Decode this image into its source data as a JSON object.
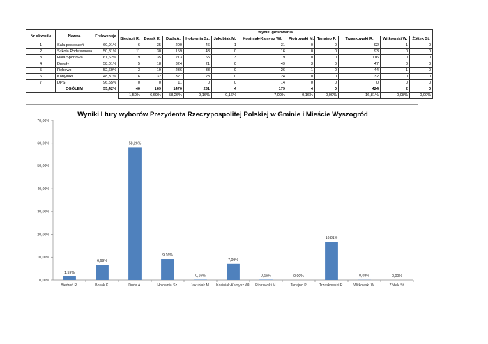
{
  "table": {
    "headers": {
      "district_no": "Nr obwodu",
      "name": "Nazwa",
      "turnout": "Frekwencja",
      "results_group": "Wyniki głosowania"
    },
    "candidates": [
      "Biedroń R.",
      "Bosak K.",
      "Duda A.",
      "Hołownia Sz.",
      "Jakubiak M.",
      "Kosiniak-Kamysz Wł.",
      "Piotrowski M.",
      "Tanajno P.",
      "Trzaskowski R.",
      "Witkowski W.",
      "Żółtek St."
    ],
    "rows": [
      {
        "no": "1",
        "name": "Sala posiedzeń",
        "turnout": "60,91%",
        "votes": [
          "6",
          "35",
          "200",
          "46",
          "1",
          "31",
          "0",
          "0",
          "92",
          "1",
          "0"
        ]
      },
      {
        "no": "2",
        "name": "Szkoła Podstawowa",
        "turnout": "50,81%",
        "votes": [
          "11",
          "30",
          "159",
          "43",
          "0",
          "16",
          "0",
          "0",
          "93",
          "0",
          "0"
        ]
      },
      {
        "no": "3",
        "name": "Hala Sportowa",
        "turnout": "61,62%",
        "votes": [
          "9",
          "35",
          "213",
          "65",
          "3",
          "19",
          "0",
          "0",
          "116",
          "0",
          "0"
        ]
      },
      {
        "no": "4",
        "name": "Drwały",
        "turnout": "58,01%",
        "votes": [
          "5",
          "18",
          "324",
          "21",
          "0",
          "49",
          "3",
          "0",
          "47",
          "0",
          "0"
        ]
      },
      {
        "no": "5",
        "name": "Rębowo",
        "turnout": "52,69%",
        "votes": [
          "3",
          "19",
          "236",
          "33",
          "0",
          "26",
          "1",
          "0",
          "44",
          "1",
          "0"
        ]
      },
      {
        "no": "6",
        "name": "Kobylniki",
        "turnout": "48,37%",
        "votes": [
          "6",
          "32",
          "327",
          "23",
          "0",
          "24",
          "0",
          "0",
          "32",
          "0",
          "0"
        ]
      },
      {
        "no": "7",
        "name": "DPS",
        "turnout": "96,55%",
        "votes": [
          "0",
          "0",
          "11",
          "0",
          "0",
          "14",
          "0",
          "0",
          "0",
          "0",
          "0"
        ]
      }
    ],
    "total": {
      "label": "OGÓŁEM",
      "turnout": "55,42%",
      "votes": [
        "40",
        "169",
        "1470",
        "231",
        "4",
        "179",
        "4",
        "0",
        "424",
        "2",
        "0"
      ]
    },
    "percents": [
      "1,59%",
      "6,69%",
      "58,26%",
      "9,16%",
      "0,16%",
      "7,09%",
      "0,16%",
      "0,00%",
      "16,81%",
      "0,08%",
      "0,00%"
    ]
  },
  "chart_data": {
    "type": "bar",
    "title": "Wyniki I tury wyborów Prezydenta Rzeczypospolitej Polskiej w Gminie i Mieście Wyszogród",
    "categories": [
      "Biedroń R.",
      "Bosak K.",
      "Duda A.",
      "Hołownia Sz.",
      "Jakubiak M.",
      "Kosiniak-Kamysz Wł.",
      "Piotrowski M.",
      "Tanajno P.",
      "Trzaskowski R.",
      "Witkowski W.",
      "Żółtek St."
    ],
    "values": [
      1.59,
      6.69,
      58.26,
      9.16,
      0.16,
      7.09,
      0.16,
      0.0,
      16.81,
      0.08,
      0.0
    ],
    "data_labels": [
      "1,59%",
      "6,69%",
      "58,26%",
      "9,16%",
      "0,16%",
      "7,09%",
      "0,16%",
      "0,00%",
      "16,81%",
      "0,08%",
      "0,00%"
    ],
    "yticks": [
      0,
      10,
      20,
      30,
      40,
      50,
      60,
      70
    ],
    "ytick_labels": [
      "0,00%",
      "10,00%",
      "20,00%",
      "30,00%",
      "40,00%",
      "50,00%",
      "60,00%",
      "70,00%"
    ],
    "ylim": [
      0,
      70
    ],
    "grid": false,
    "legend": "none",
    "bar_color": "#4f81bd"
  }
}
